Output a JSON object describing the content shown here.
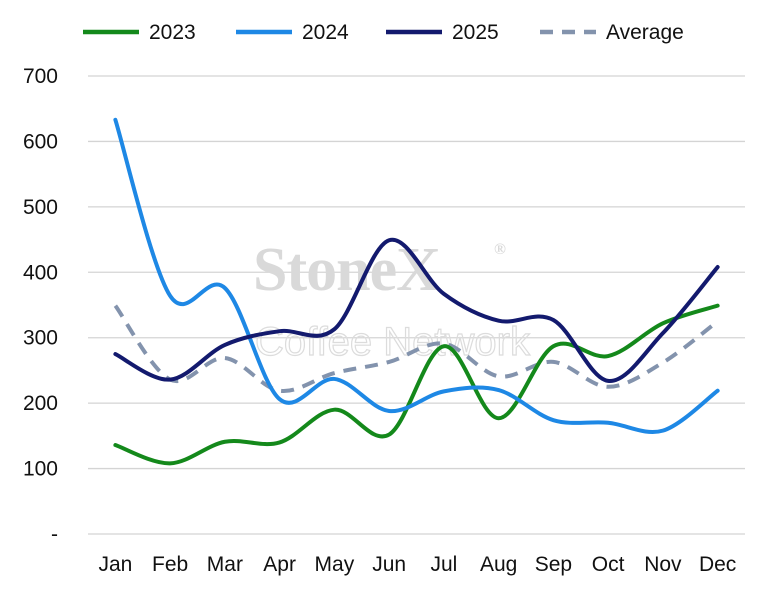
{
  "chart_data": {
    "type": "line",
    "categories": [
      "Jan",
      "Feb",
      "Mar",
      "Apr",
      "May",
      "Jun",
      "Jul",
      "Aug",
      "Sep",
      "Oct",
      "Nov",
      "Dec"
    ],
    "ylim": [
      0,
      700
    ],
    "yticks": [
      0,
      100,
      200,
      300,
      400,
      500,
      600,
      700
    ],
    "ytick_labels": [
      "-",
      "100",
      "200",
      "300",
      "400",
      "500",
      "600",
      "700"
    ],
    "grid": true,
    "legend_position": "top",
    "smooth": true,
    "series": [
      {
        "name": "2023",
        "color": "#14891b",
        "dash": "solid",
        "values": [
          136,
          108,
          141,
          140,
          190,
          152,
          287,
          177,
          287,
          272,
          322,
          349
        ]
      },
      {
        "name": "2024",
        "color": "#1e88e5",
        "dash": "solid",
        "values": [
          633,
          364,
          376,
          206,
          237,
          188,
          218,
          220,
          174,
          170,
          158,
          219
        ]
      },
      {
        "name": "2025",
        "color": "#131a6e",
        "dash": "solid",
        "values": [
          275,
          236,
          289,
          310,
          313,
          449,
          367,
          326,
          327,
          234,
          307,
          408
        ]
      },
      {
        "name": "Average",
        "color": "#8393ad",
        "dash": "dashed",
        "values": [
          349,
          236,
          269,
          219,
          246,
          263,
          291,
          241,
          263,
          225,
          262,
          325
        ]
      }
    ],
    "watermark": {
      "brand": "StoneX",
      "mark": "®",
      "subtitle": "Coffee Network"
    }
  }
}
